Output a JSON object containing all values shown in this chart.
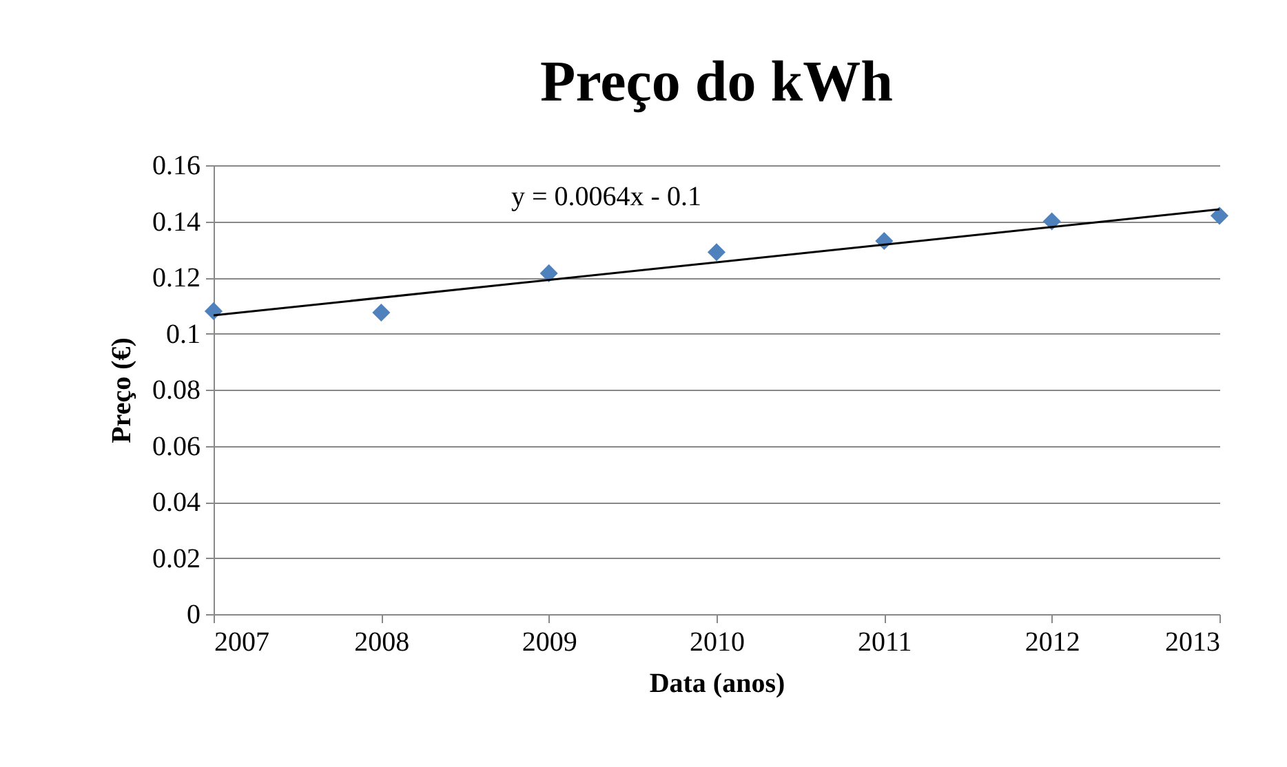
{
  "chart_data": {
    "type": "scatter",
    "title": "Preço do kWh",
    "xlabel": "Data (anos)",
    "ylabel": "Preço (€)",
    "x": [
      2007,
      2008,
      2009,
      2010,
      2011,
      2012,
      2013
    ],
    "series": [
      {
        "color": "#4f81bd",
        "marker": "diamond",
        "values": [
          0.108,
          0.1075,
          0.1215,
          0.129,
          0.133,
          0.14,
          0.142
        ]
      },
      {
        "type": "line",
        "color": "#000000",
        "marker": "none",
        "x": [
          2007,
          2013
        ],
        "values": [
          0.1065,
          0.1443
        ]
      }
    ],
    "annotations": [
      "y = 0.0064x - 0.1"
    ],
    "xlim": [
      2007,
      2013
    ],
    "xticks": [
      2007,
      2008,
      2009,
      2010,
      2011,
      2012,
      2013
    ],
    "ylim": [
      0,
      0.16
    ],
    "yticks": [
      0,
      0.02,
      0.04,
      0.06,
      0.08,
      0.1,
      0.12,
      0.14,
      0.16
    ],
    "grid": "y"
  }
}
